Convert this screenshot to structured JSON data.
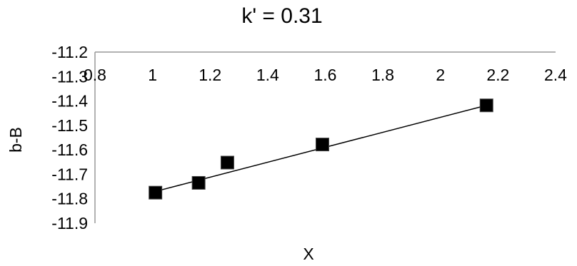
{
  "chart_data": {
    "type": "scatter",
    "title": "k' = 0.31",
    "xlabel": "X",
    "ylabel": "b-B",
    "xlim": [
      0.8,
      2.4
    ],
    "ylim": [
      -11.9,
      -11.2
    ],
    "x_ticks": [
      "0.8",
      "1",
      "1.2",
      "1.4",
      "1.6",
      "1.8",
      "2",
      "2.2",
      "2.4"
    ],
    "y_ticks": [
      "-11.2",
      "-11.3",
      "-11.4",
      "-11.5",
      "-11.6",
      "-11.7",
      "-11.8",
      "-11.9"
    ],
    "x_tick_values": [
      0.8,
      1.0,
      1.2,
      1.4,
      1.6,
      1.8,
      2.0,
      2.2,
      2.4
    ],
    "y_tick_values": [
      -11.2,
      -11.3,
      -11.4,
      -11.5,
      -11.6,
      -11.7,
      -11.8,
      -11.9
    ],
    "grid": false,
    "legend": "none",
    "marker_color": "#000000",
    "series": [
      {
        "points": [
          {
            "x": 1.01,
            "y": -11.775
          },
          {
            "x": 1.16,
            "y": -11.735
          },
          {
            "x": 1.26,
            "y": -11.652
          },
          {
            "x": 1.59,
            "y": -11.578
          },
          {
            "x": 2.16,
            "y": -11.418
          }
        ]
      }
    ],
    "trendline": {
      "x": [
        1.01,
        2.16
      ],
      "y": [
        -11.77,
        -11.418
      ]
    }
  }
}
